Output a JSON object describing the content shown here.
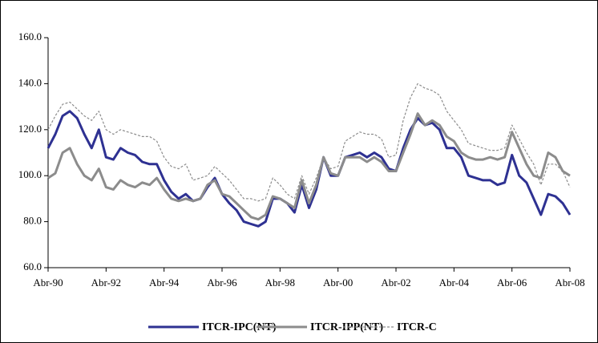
{
  "chart_data": {
    "type": "line",
    "categories": [
      "Abr-90",
      null,
      null,
      null,
      null,
      null,
      null,
      null,
      "Abr-92",
      null,
      null,
      null,
      null,
      null,
      null,
      null,
      "Abr-94",
      null,
      null,
      null,
      null,
      null,
      null,
      null,
      "Abr-96",
      null,
      null,
      null,
      null,
      null,
      null,
      null,
      "Abr-98",
      null,
      null,
      null,
      null,
      null,
      null,
      null,
      "Abr-00",
      null,
      null,
      null,
      null,
      null,
      null,
      null,
      "Abr-02",
      null,
      null,
      null,
      null,
      null,
      null,
      null,
      "Abr-04",
      null,
      null,
      null,
      null,
      null,
      null,
      null,
      "Abr-06",
      null,
      null,
      null,
      null,
      null,
      null,
      null,
      "Abr-08"
    ],
    "series": [
      {
        "name": "ITCR-IPC(NT)",
        "color": "#2e3192",
        "line_style": "solid",
        "values": [
          112,
          118,
          126,
          128,
          125,
          118,
          112,
          120,
          108,
          107,
          112,
          110,
          109,
          106,
          105,
          105,
          98,
          93,
          90,
          92,
          89,
          90,
          95,
          99,
          92,
          88,
          85,
          80,
          79,
          78,
          80,
          90,
          90,
          88,
          84,
          96,
          86,
          94,
          108,
          100,
          100,
          108,
          109,
          110,
          108,
          110,
          108,
          103,
          102,
          112,
          120,
          125,
          122,
          123,
          120,
          112,
          112,
          108,
          100,
          99,
          98,
          98,
          96,
          97,
          109,
          100,
          97,
          90,
          83,
          92,
          91,
          88,
          83
        ]
      },
      {
        "name": "ITCR-IPP(NT)",
        "color": "#8c8c8c",
        "line_style": "solid",
        "values": [
          99,
          101,
          110,
          112,
          105,
          100,
          98,
          103,
          95,
          94,
          98,
          96,
          95,
          97,
          96,
          99,
          94,
          90,
          89,
          90,
          89,
          90,
          96,
          98,
          92,
          91,
          88,
          85,
          82,
          81,
          83,
          91,
          90,
          88,
          86,
          98,
          88,
          96,
          108,
          101,
          100,
          108,
          108,
          108,
          106,
          108,
          106,
          102,
          102,
          110,
          118,
          127,
          122,
          124,
          122,
          117,
          115,
          110,
          108,
          107,
          107,
          108,
          107,
          108,
          119,
          112,
          105,
          100,
          99,
          110,
          108,
          102,
          100
        ]
      },
      {
        "name": "ITCR-C",
        "color": "#8c8c8c",
        "line_style": "dashed",
        "values": [
          120,
          126,
          131,
          132,
          129,
          126,
          124,
          128,
          120,
          118,
          120,
          119,
          118,
          117,
          117,
          115,
          108,
          104,
          103,
          105,
          98,
          99,
          100,
          104,
          101,
          98,
          94,
          90,
          90,
          89,
          90,
          99,
          96,
          92,
          90,
          100,
          92,
          99,
          108,
          103,
          104,
          115,
          117,
          119,
          118,
          118,
          116,
          108,
          109,
          124,
          134,
          140,
          138,
          137,
          135,
          128,
          124,
          120,
          114,
          113,
          112,
          111,
          111,
          112,
          122,
          116,
          110,
          105,
          96,
          105,
          105,
          102,
          95
        ]
      }
    ],
    "ylim": [
      60,
      160
    ],
    "yticks": [
      {
        "value": 60,
        "label": "60.0"
      },
      {
        "value": 80,
        "label": "80.0"
      },
      {
        "value": 100,
        "label": "100.0"
      },
      {
        "value": 120,
        "label": "120.0"
      },
      {
        "value": 140,
        "label": "140.0"
      },
      {
        "value": 160,
        "label": "160.0"
      }
    ],
    "grid": false
  }
}
